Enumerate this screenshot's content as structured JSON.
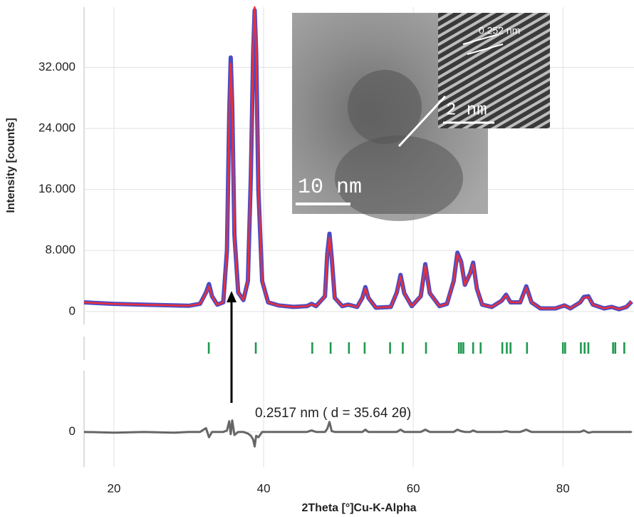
{
  "chart_data": [
    {
      "type": "line",
      "y_label": "Intensity [counts]",
      "xlim": [
        16,
        89.5
      ],
      "ylim": [
        -1700,
        39900
      ],
      "yticks": [
        0,
        {
          "value": 8000,
          "label": "8.000"
        },
        {
          "value": 16000,
          "label": "16.000"
        },
        {
          "value": 24000,
          "label": "24.000"
        },
        {
          "value": 32000,
          "label": "32.000"
        }
      ],
      "grid": true,
      "inset_labels": [
        "10 nm",
        "2 nm",
        "0.252 nm"
      ],
      "x": [
        16,
        20,
        24,
        28,
        30,
        31.5,
        32.3,
        32.7,
        33.1,
        33.8,
        34.6,
        35.1,
        35.4,
        35.6,
        35.8,
        36.1,
        36.6,
        37.3,
        37.9,
        38.3,
        38.6,
        38.8,
        39.0,
        39.3,
        39.8,
        40.6,
        42,
        44,
        45.8,
        46.4,
        47,
        48.2,
        48.5,
        48.8,
        49.1,
        49.5,
        50.5,
        51.3,
        52.5,
        53.2,
        53.6,
        54,
        55,
        57,
        57.8,
        58.3,
        58.8,
        59.8,
        61,
        61.6,
        62.2,
        63.5,
        64.5,
        65.4,
        65.9,
        66.4,
        66.9,
        67.6,
        68.0,
        68.5,
        69.2,
        70.5,
        71.8,
        72.4,
        73,
        74.3,
        75.1,
        75.8,
        77,
        79,
        80.2,
        81,
        82.3,
        82.8,
        83.4,
        84,
        85.5,
        86.5,
        87.5,
        88.5,
        89.2
      ],
      "series": [
        {
          "color": "#4b4bc4",
          "values": [
            1200,
            1000,
            900,
            800,
            750,
            1000,
            2500,
            3600,
            2000,
            900,
            1200,
            8000,
            26000,
            33300,
            27000,
            10000,
            2500,
            1500,
            4000,
            18000,
            34000,
            39500,
            34000,
            16000,
            4000,
            1200,
            800,
            600,
            700,
            1000,
            700,
            2000,
            7500,
            10200,
            7000,
            1800,
            700,
            900,
            600,
            1800,
            3200,
            1800,
            500,
            600,
            2500,
            4800,
            2400,
            700,
            2000,
            6200,
            2400,
            700,
            1000,
            4000,
            7700,
            6500,
            3500,
            5000,
            6400,
            3000,
            900,
            600,
            1400,
            2200,
            1200,
            1200,
            3300,
            1200,
            400,
            400,
            800,
            400,
            1200,
            1900,
            2000,
            900,
            400,
            600,
            300,
            600,
            1300
          ]
        },
        {
          "color": "#e8303c",
          "values": [
            1200,
            1000,
            900,
            800,
            750,
            1000,
            2400,
            3300,
            2000,
            900,
            1200,
            7800,
            25500,
            32500,
            26800,
            9800,
            2500,
            1500,
            4100,
            18500,
            35000,
            39900,
            34500,
            16500,
            4000,
            1200,
            800,
            600,
            700,
            950,
            700,
            2000,
            7300,
            9700,
            6900,
            1800,
            700,
            900,
            600,
            1800,
            3000,
            1800,
            500,
            600,
            2500,
            4600,
            2400,
            700,
            2000,
            6000,
            2400,
            700,
            1000,
            4000,
            7500,
            6400,
            3500,
            5000,
            6200,
            3000,
            900,
            600,
            1400,
            2100,
            1200,
            1200,
            3100,
            1200,
            400,
            400,
            800,
            400,
            1200,
            1800,
            1900,
            900,
            400,
            600,
            300,
            600,
            1300
          ]
        }
      ]
    },
    {
      "type": "reflections",
      "color": "#1f9a4f",
      "xlim": [
        16,
        89.5
      ],
      "x": [
        32.67,
        35.7,
        38.95,
        46.5,
        48.95,
        51.4,
        53.5,
        56.9,
        58.6,
        61.7,
        66.1,
        66.4,
        66.7,
        68.0,
        69.0,
        71.9,
        72.5,
        73.0,
        75.2,
        80.0,
        80.3,
        82.4,
        82.9,
        83.4,
        86.7,
        87.0,
        88.2
      ]
    },
    {
      "type": "line",
      "x_label": "2Theta [°]Cu-K-Alpha",
      "annotations": [
        "0.2517 nm ( d = 35.64 2θ)"
      ],
      "xlim": [
        16,
        89.5
      ],
      "ylim": [
        -4600,
        8000
      ],
      "xticks": [
        20,
        40,
        60,
        80
      ],
      "yticks": [
        0
      ],
      "grid": true,
      "x": [
        16,
        20,
        24,
        28,
        30,
        31.5,
        32.3,
        32.7,
        33.1,
        33.8,
        34.6,
        35.1,
        35.4,
        35.6,
        35.8,
        36.1,
        36.6,
        37.3,
        37.9,
        38.3,
        38.6,
        38.8,
        39.0,
        39.3,
        39.8,
        40.6,
        42,
        44,
        45.8,
        46.4,
        47,
        48.2,
        48.5,
        48.8,
        49.1,
        49.5,
        50.5,
        51.3,
        52.5,
        53.2,
        53.6,
        54,
        55,
        57,
        57.8,
        58.3,
        58.8,
        59.8,
        61,
        61.6,
        62.2,
        63.5,
        64.5,
        65.4,
        65.9,
        66.4,
        66.9,
        67.6,
        68.0,
        68.5,
        69.2,
        70.5,
        71.8,
        72.4,
        73,
        74.3,
        75.1,
        75.8,
        77,
        79,
        80.2,
        81,
        82.3,
        82.8,
        83.4,
        84,
        85.5,
        86.5,
        87.5,
        88.5,
        89.2
      ],
      "series": [
        {
          "color": "#666666",
          "values": [
            0,
            -100,
            0,
            -100,
            0,
            0,
            500,
            -700,
            0,
            0,
            0,
            200,
            1400,
            -300,
            1500,
            -400,
            0,
            0,
            -200,
            -500,
            -1000,
            -1900,
            -500,
            -700,
            0,
            0,
            0,
            0,
            0,
            200,
            0,
            0,
            400,
            1300,
            100,
            0,
            0,
            0,
            0,
            0,
            300,
            0,
            0,
            0,
            0,
            300,
            0,
            0,
            0,
            300,
            0,
            0,
            0,
            0,
            300,
            100,
            0,
            0,
            200,
            0,
            0,
            0,
            0,
            100,
            0,
            0,
            300,
            0,
            0,
            0,
            0,
            0,
            0,
            200,
            -100,
            0,
            0,
            0,
            0,
            0,
            0
          ]
        }
      ]
    }
  ]
}
